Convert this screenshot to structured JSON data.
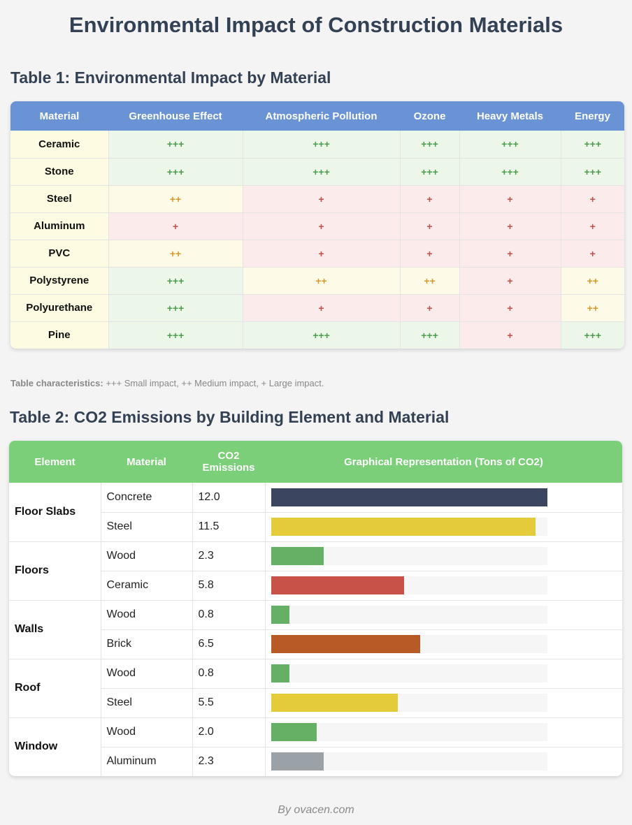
{
  "title": "Environmental Impact of Construction Materials",
  "table1": {
    "title": "Table 1: Environmental Impact by Material",
    "headers": [
      "Material",
      "Greenhouse Effect",
      "Atmospheric Pollution",
      "Ozone",
      "Heavy Metals",
      "Energy"
    ],
    "rows": [
      {
        "material": "Ceramic",
        "values": [
          "+++",
          "+++",
          "+++",
          "+++",
          "+++"
        ]
      },
      {
        "material": "Stone",
        "values": [
          "+++",
          "+++",
          "+++",
          "+++",
          "+++"
        ]
      },
      {
        "material": "Steel",
        "values": [
          "++",
          "+",
          "+",
          "+",
          "+"
        ]
      },
      {
        "material": "Aluminum",
        "values": [
          "+",
          "+",
          "+",
          "+",
          "+"
        ]
      },
      {
        "material": "PVC",
        "values": [
          "++",
          "+",
          "+",
          "+",
          "+"
        ]
      },
      {
        "material": "Polystyrene",
        "values": [
          "+++",
          "++",
          "++",
          "+",
          "++"
        ]
      },
      {
        "material": "Polyurethane",
        "values": [
          "+++",
          "+",
          "+",
          "+",
          "++"
        ]
      },
      {
        "material": "Pine",
        "values": [
          "+++",
          "+++",
          "+++",
          "+",
          "+++"
        ]
      }
    ]
  },
  "legend": {
    "label": "Table characteristics:",
    "text": " +++ Small impact, ++ Medium impact, + Large impact."
  },
  "table2": {
    "title": "Table 2: CO2 Emissions by Building Element and Material",
    "headers": [
      "Element",
      "Material",
      "CO2 Emissions",
      "Graphical Representation (Tons of CO2)"
    ],
    "max_value": 12.0,
    "groups": [
      {
        "element": "Floor Slabs",
        "items": [
          {
            "material": "Concrete",
            "co2": "12.0",
            "value": 12.0,
            "color": "#3b4560"
          },
          {
            "material": "Steel",
            "co2": "11.5",
            "value": 11.5,
            "color": "#e4cb3a"
          }
        ]
      },
      {
        "element": "Floors",
        "items": [
          {
            "material": "Wood",
            "co2": "2.3",
            "value": 2.3,
            "color": "#66b066"
          },
          {
            "material": "Ceramic",
            "co2": "5.8",
            "value": 5.8,
            "color": "#c85248"
          }
        ]
      },
      {
        "element": "Walls",
        "items": [
          {
            "material": "Wood",
            "co2": "0.8",
            "value": 0.8,
            "color": "#66b066"
          },
          {
            "material": "Brick",
            "co2": "6.5",
            "value": 6.5,
            "color": "#b85a25"
          }
        ]
      },
      {
        "element": "Roof",
        "items": [
          {
            "material": "Wood",
            "co2": "0.8",
            "value": 0.8,
            "color": "#66b066"
          },
          {
            "material": "Steel",
            "co2": "5.5",
            "value": 5.5,
            "color": "#e4cb3a"
          }
        ]
      },
      {
        "element": "Window",
        "items": [
          {
            "material": "Wood",
            "co2": "2.0",
            "value": 2.0,
            "color": "#66b066"
          },
          {
            "material": "Aluminum",
            "co2": "2.3",
            "value": 2.3,
            "color": "#9aa2a8"
          }
        ]
      }
    ]
  },
  "footer": "By ovacen.com",
  "colors": {
    "small_impact": "#4a9d4a",
    "medium_impact": "#d69a2a",
    "large_impact": "#c0504a",
    "table1_header": "#6a93d5",
    "table2_header": "#7bcf78"
  }
}
